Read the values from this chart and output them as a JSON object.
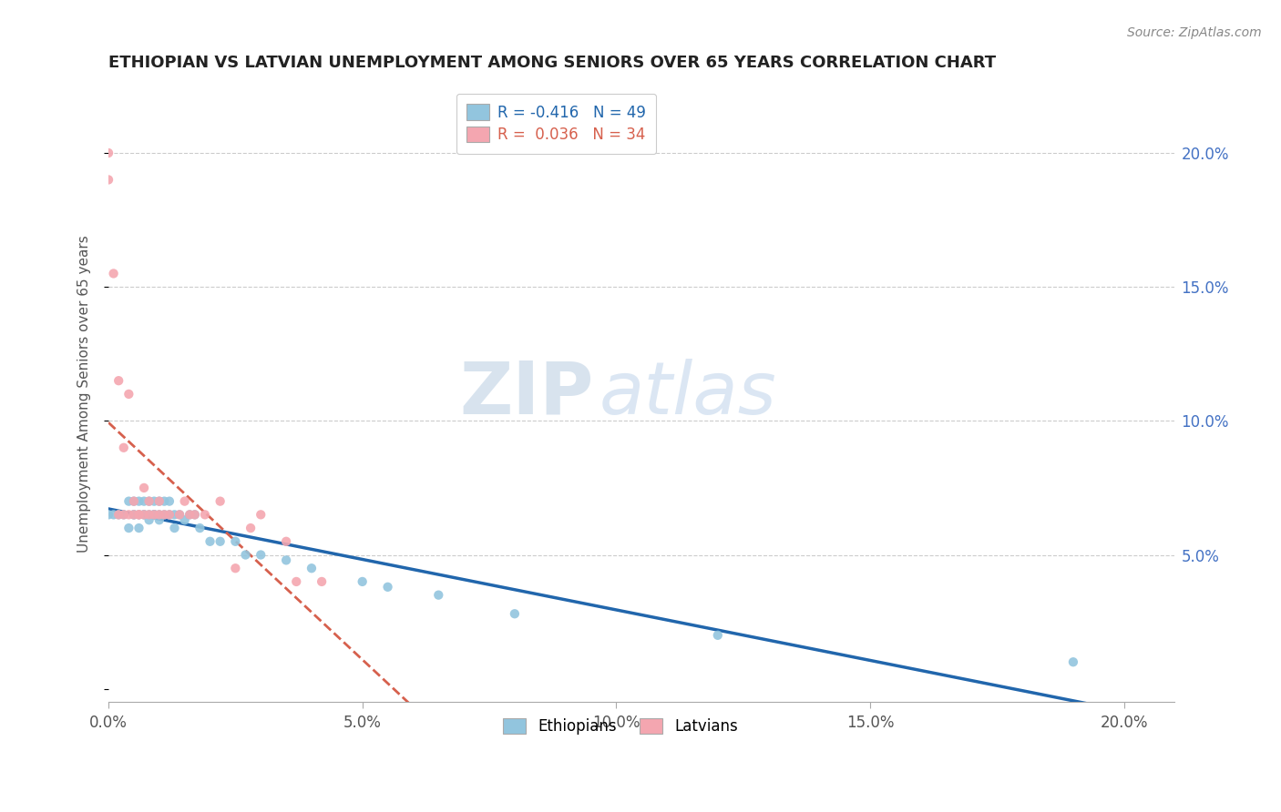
{
  "title": "ETHIOPIAN VS LATVIAN UNEMPLOYMENT AMONG SENIORS OVER 65 YEARS CORRELATION CHART",
  "source": "Source: ZipAtlas.com",
  "ylabel": "Unemployment Among Seniors over 65 years",
  "xlim": [
    0.0,
    0.21
  ],
  "ylim": [
    -0.005,
    0.225
  ],
  "xticks": [
    0.0,
    0.05,
    0.1,
    0.15,
    0.2
  ],
  "yticks_right": [
    0.05,
    0.1,
    0.15,
    0.2
  ],
  "xticklabels": [
    "0.0%",
    "5.0%",
    "10.0%",
    "15.0%",
    "20.0%"
  ],
  "yticklabels_right": [
    "5.0%",
    "10.0%",
    "15.0%",
    "20.0%"
  ],
  "legend_labels": [
    "R = -0.416   N = 49",
    "R =  0.036   N = 34"
  ],
  "legend_bottom": [
    "Ethiopians",
    "Latvians"
  ],
  "ethiopians_color": "#92c5de",
  "latvians_color": "#f4a6b0",
  "trend_eth_color": "#2166ac",
  "trend_lat_color": "#d6604d",
  "watermark_zip": "ZIP",
  "watermark_atlas": "atlas",
  "background_color": "#ffffff",
  "grid_color": "#cccccc",
  "ethiopians_x": [
    0.0,
    0.001,
    0.002,
    0.003,
    0.004,
    0.004,
    0.005,
    0.005,
    0.005,
    0.006,
    0.006,
    0.006,
    0.007,
    0.007,
    0.007,
    0.008,
    0.008,
    0.008,
    0.009,
    0.009,
    0.009,
    0.009,
    0.01,
    0.01,
    0.01,
    0.011,
    0.011,
    0.012,
    0.012,
    0.013,
    0.013,
    0.014,
    0.015,
    0.016,
    0.017,
    0.018,
    0.02,
    0.022,
    0.025,
    0.027,
    0.03,
    0.035,
    0.04,
    0.05,
    0.055,
    0.065,
    0.08,
    0.12,
    0.19
  ],
  "ethiopians_y": [
    0.065,
    0.065,
    0.065,
    0.065,
    0.07,
    0.06,
    0.065,
    0.065,
    0.07,
    0.06,
    0.065,
    0.07,
    0.065,
    0.065,
    0.07,
    0.063,
    0.065,
    0.07,
    0.065,
    0.065,
    0.065,
    0.07,
    0.063,
    0.065,
    0.07,
    0.065,
    0.07,
    0.065,
    0.07,
    0.06,
    0.065,
    0.065,
    0.063,
    0.065,
    0.065,
    0.06,
    0.055,
    0.055,
    0.055,
    0.05,
    0.05,
    0.048,
    0.045,
    0.04,
    0.038,
    0.035,
    0.028,
    0.02,
    0.01
  ],
  "latvians_x": [
    0.0,
    0.0,
    0.001,
    0.002,
    0.002,
    0.003,
    0.003,
    0.004,
    0.004,
    0.005,
    0.005,
    0.006,
    0.006,
    0.007,
    0.007,
    0.008,
    0.008,
    0.009,
    0.01,
    0.01,
    0.011,
    0.012,
    0.014,
    0.015,
    0.016,
    0.017,
    0.019,
    0.022,
    0.025,
    0.028,
    0.03,
    0.035,
    0.037,
    0.042
  ],
  "latvians_y": [
    0.2,
    0.19,
    0.155,
    0.065,
    0.115,
    0.09,
    0.065,
    0.065,
    0.11,
    0.07,
    0.065,
    0.065,
    0.065,
    0.075,
    0.065,
    0.065,
    0.07,
    0.065,
    0.07,
    0.065,
    0.065,
    0.065,
    0.065,
    0.07,
    0.065,
    0.065,
    0.065,
    0.07,
    0.045,
    0.06,
    0.065,
    0.055,
    0.04,
    0.04
  ]
}
